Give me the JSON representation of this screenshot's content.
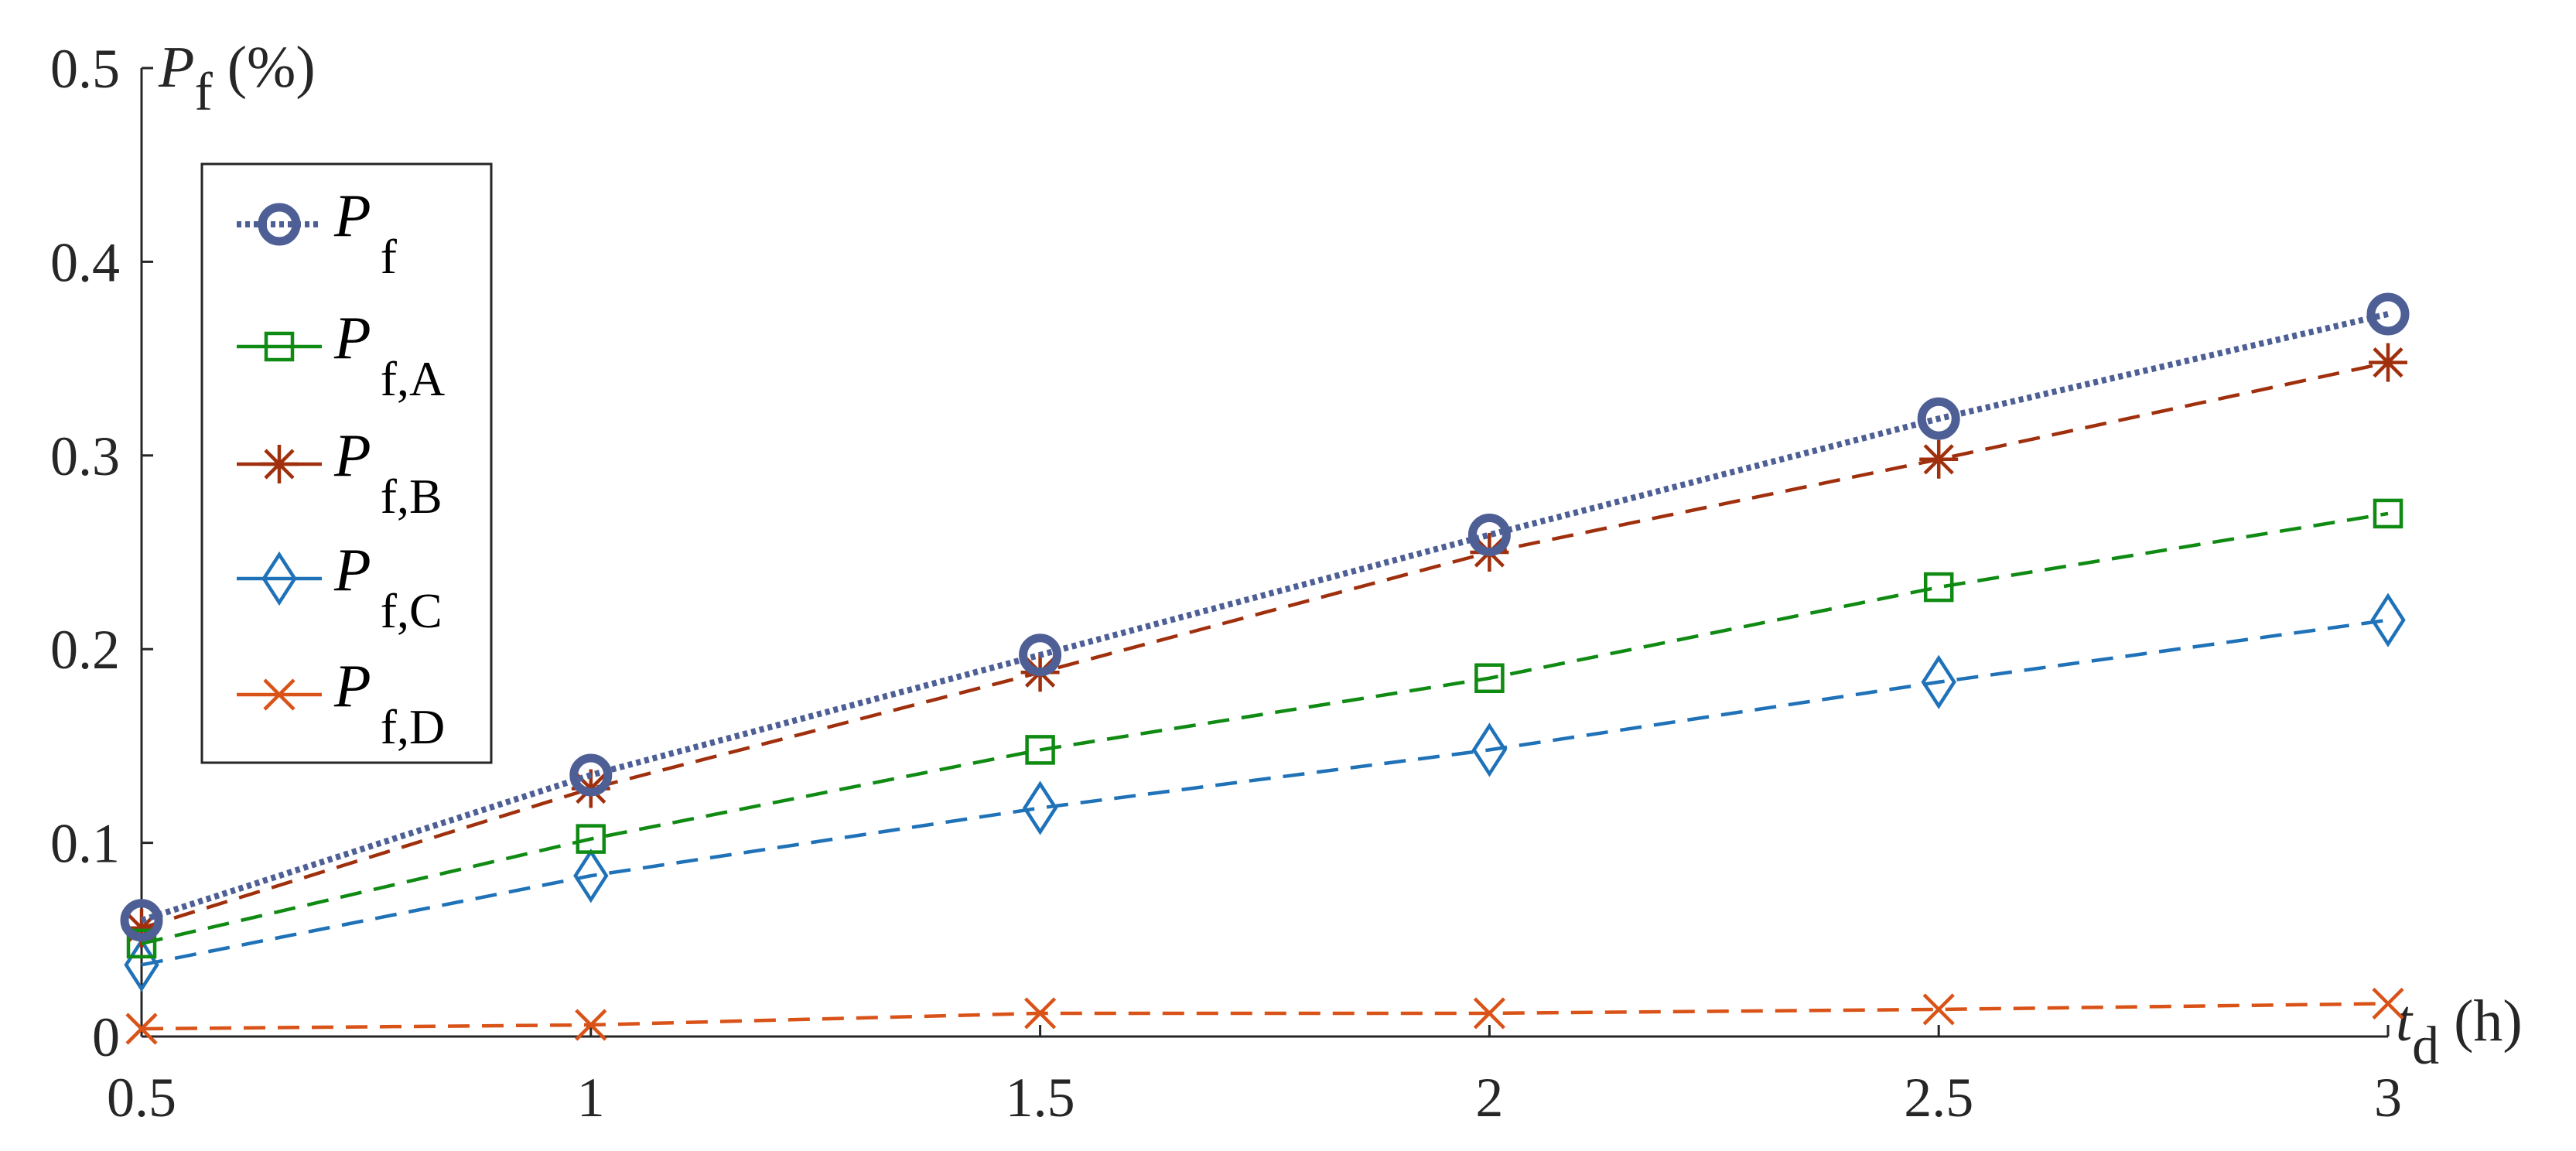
{
  "chart_data": {
    "type": "line",
    "x": [
      0.5,
      1,
      1.5,
      2,
      2.5,
      3
    ],
    "xlim": [
      0.5,
      3
    ],
    "ylim": [
      0,
      0.5
    ],
    "x_ticks": [
      "0.5",
      "1",
      "1.5",
      "2",
      "2.5",
      "3"
    ],
    "y_ticks": [
      "0",
      "0.1",
      "0.2",
      "0.3",
      "0.4",
      "0.5"
    ],
    "xlabel": {
      "main": "t",
      "sub": "d",
      "unit": " (h)"
    },
    "ylabel": {
      "main": "P",
      "sub": "f",
      "unit": " (%)"
    },
    "grid": false,
    "legend_position": "top-left",
    "series": [
      {
        "name": "P",
        "name_sub": "f",
        "marker": "circle",
        "line": "dotted",
        "color": "#4e5f96",
        "values": [
          0.06,
          0.135,
          0.197,
          0.259,
          0.319,
          0.373
        ]
      },
      {
        "name": "P",
        "name_sub": "f,A",
        "marker": "square",
        "line": "dashed",
        "color": "#0f8a12",
        "values": [
          0.048,
          0.102,
          0.148,
          0.185,
          0.232,
          0.27
        ]
      },
      {
        "name": "P",
        "name_sub": "f,B",
        "marker": "asterisk",
        "line": "dashed",
        "color": "#a0300d",
        "values": [
          0.056,
          0.128,
          0.188,
          0.25,
          0.298,
          0.348
        ]
      },
      {
        "name": "P",
        "name_sub": "f,C",
        "marker": "diamond",
        "line": "dashed",
        "color": "#1f72b8",
        "values": [
          0.037,
          0.083,
          0.118,
          0.148,
          0.183,
          0.215
        ]
      },
      {
        "name": "P",
        "name_sub": "f,D",
        "marker": "x",
        "line": "dashed",
        "color": "#d95319",
        "values": [
          0.004,
          0.006,
          0.012,
          0.012,
          0.014,
          0.017
        ]
      }
    ]
  }
}
